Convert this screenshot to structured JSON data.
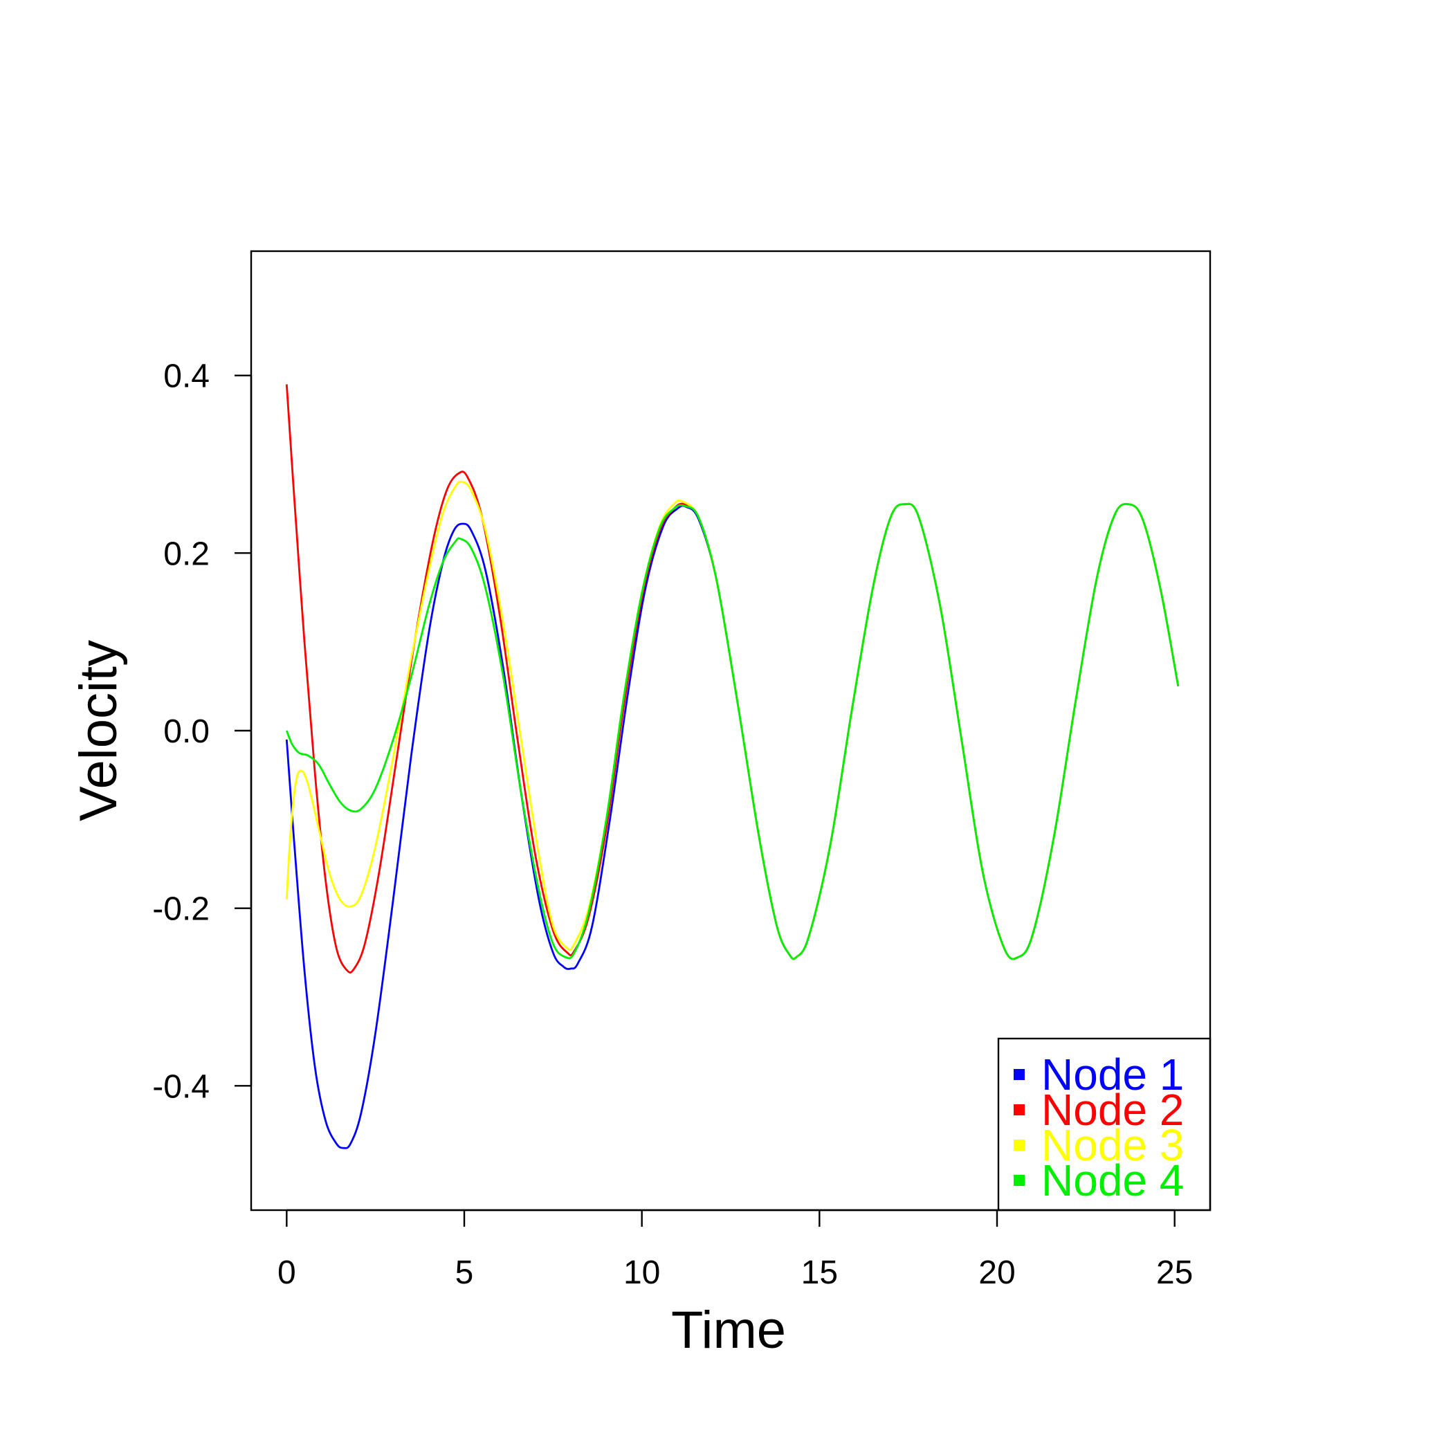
{
  "chart_data": {
    "type": "line",
    "xlabel": "Time",
    "ylabel": "Velocity",
    "xlim": [
      -1,
      26
    ],
    "ylim": [
      -0.54,
      0.54
    ],
    "x_ticks": [
      0,
      5,
      10,
      15,
      20,
      25
    ],
    "x_tick_labels": [
      "0",
      "5",
      "10",
      "15",
      "20",
      "25"
    ],
    "y_ticks": [
      -0.4,
      -0.2,
      0.0,
      0.2,
      0.4
    ],
    "y_tick_labels": [
      "-0.4",
      "-0.2",
      "0.0",
      "0.2",
      "0.4"
    ],
    "grid": false,
    "legend_position": "bottom-right",
    "series": [
      {
        "name": "Node 1",
        "color": "#0000ff",
        "points": [
          [
            0,
            -0.01
          ],
          [
            0.2,
            -0.12
          ],
          [
            0.5,
            -0.27
          ],
          [
            0.8,
            -0.38
          ],
          [
            1.1,
            -0.44
          ],
          [
            1.4,
            -0.465
          ],
          [
            1.6,
            -0.47
          ],
          [
            1.8,
            -0.465
          ],
          [
            2.1,
            -0.43
          ],
          [
            2.5,
            -0.34
          ],
          [
            3.0,
            -0.19
          ],
          [
            3.5,
            -0.03
          ],
          [
            4.0,
            0.11
          ],
          [
            4.4,
            0.19
          ],
          [
            4.7,
            0.225
          ],
          [
            4.95,
            0.233
          ],
          [
            5.2,
            0.225
          ],
          [
            5.6,
            0.18
          ],
          [
            6.1,
            0.07
          ],
          [
            6.6,
            -0.07
          ],
          [
            7.1,
            -0.19
          ],
          [
            7.5,
            -0.25
          ],
          [
            7.8,
            -0.266
          ],
          [
            8.0,
            -0.268
          ],
          [
            8.2,
            -0.262
          ],
          [
            8.6,
            -0.22
          ],
          [
            9.1,
            -0.1
          ],
          [
            9.6,
            0.04
          ],
          [
            10.1,
            0.16
          ],
          [
            10.6,
            0.23
          ],
          [
            11.0,
            0.25
          ],
          [
            11.25,
            0.252
          ],
          [
            11.6,
            0.238
          ],
          [
            12.1,
            0.17
          ],
          [
            12.7,
            0.03
          ],
          [
            13.3,
            -0.12
          ],
          [
            13.8,
            -0.22
          ],
          [
            14.15,
            -0.252
          ],
          [
            14.35,
            -0.255
          ],
          [
            14.7,
            -0.232
          ],
          [
            15.3,
            -0.13
          ],
          [
            15.9,
            0.02
          ],
          [
            16.5,
            0.16
          ],
          [
            17.0,
            0.24
          ],
          [
            17.4,
            0.255
          ],
          [
            17.8,
            0.24
          ],
          [
            18.4,
            0.14
          ],
          [
            19.0,
            -0.01
          ],
          [
            19.6,
            -0.16
          ],
          [
            20.2,
            -0.245
          ],
          [
            20.6,
            -0.255
          ],
          [
            21.0,
            -0.23
          ],
          [
            21.6,
            -0.12
          ],
          [
            22.2,
            0.03
          ],
          [
            22.8,
            0.17
          ],
          [
            23.3,
            0.242
          ],
          [
            23.7,
            0.255
          ],
          [
            24.1,
            0.238
          ],
          [
            24.6,
            0.16
          ],
          [
            25.1,
            0.05
          ]
        ]
      },
      {
        "name": "Node 2",
        "color": "#ff0000",
        "points": [
          [
            0,
            0.39
          ],
          [
            0.2,
            0.27
          ],
          [
            0.5,
            0.1
          ],
          [
            0.8,
            -0.05
          ],
          [
            1.1,
            -0.17
          ],
          [
            1.4,
            -0.245
          ],
          [
            1.7,
            -0.27
          ],
          [
            1.9,
            -0.268
          ],
          [
            2.2,
            -0.24
          ],
          [
            2.6,
            -0.16
          ],
          [
            3.1,
            -0.03
          ],
          [
            3.6,
            0.1
          ],
          [
            4.1,
            0.21
          ],
          [
            4.5,
            0.27
          ],
          [
            4.85,
            0.29
          ],
          [
            5.1,
            0.285
          ],
          [
            5.5,
            0.24
          ],
          [
            6.0,
            0.13
          ],
          [
            6.5,
            -0.01
          ],
          [
            7.0,
            -0.14
          ],
          [
            7.5,
            -0.225
          ],
          [
            7.9,
            -0.25
          ],
          [
            8.1,
            -0.248
          ],
          [
            8.5,
            -0.21
          ],
          [
            9.0,
            -0.11
          ],
          [
            9.5,
            0.03
          ],
          [
            10.0,
            0.15
          ],
          [
            10.5,
            0.225
          ],
          [
            10.9,
            0.25
          ],
          [
            11.2,
            0.255
          ],
          [
            11.6,
            0.24
          ],
          [
            12.1,
            0.17
          ],
          [
            12.7,
            0.03
          ],
          [
            13.3,
            -0.12
          ],
          [
            13.8,
            -0.22
          ],
          [
            14.15,
            -0.252
          ],
          [
            14.35,
            -0.255
          ],
          [
            14.7,
            -0.232
          ],
          [
            15.3,
            -0.13
          ],
          [
            15.9,
            0.02
          ],
          [
            16.5,
            0.16
          ],
          [
            17.0,
            0.24
          ],
          [
            17.4,
            0.255
          ],
          [
            17.8,
            0.24
          ],
          [
            18.4,
            0.14
          ],
          [
            19.0,
            -0.01
          ],
          [
            19.6,
            -0.16
          ],
          [
            20.2,
            -0.245
          ],
          [
            20.6,
            -0.255
          ],
          [
            21.0,
            -0.23
          ],
          [
            21.6,
            -0.12
          ],
          [
            22.2,
            0.03
          ],
          [
            22.8,
            0.17
          ],
          [
            23.3,
            0.242
          ],
          [
            23.7,
            0.255
          ],
          [
            24.1,
            0.238
          ],
          [
            24.6,
            0.16
          ],
          [
            25.1,
            0.05
          ]
        ]
      },
      {
        "name": "Node 3",
        "color": "#ffff00",
        "points": [
          [
            0,
            -0.19
          ],
          [
            0.1,
            -0.12
          ],
          [
            0.25,
            -0.06
          ],
          [
            0.4,
            -0.045
          ],
          [
            0.6,
            -0.06
          ],
          [
            0.9,
            -0.11
          ],
          [
            1.2,
            -0.16
          ],
          [
            1.5,
            -0.19
          ],
          [
            1.8,
            -0.198
          ],
          [
            2.1,
            -0.185
          ],
          [
            2.5,
            -0.13
          ],
          [
            3.0,
            -0.03
          ],
          [
            3.5,
            0.08
          ],
          [
            4.0,
            0.18
          ],
          [
            4.4,
            0.245
          ],
          [
            4.75,
            0.275
          ],
          [
            4.95,
            0.28
          ],
          [
            5.2,
            0.27
          ],
          [
            5.6,
            0.225
          ],
          [
            6.1,
            0.12
          ],
          [
            6.6,
            -0.01
          ],
          [
            7.1,
            -0.14
          ],
          [
            7.5,
            -0.22
          ],
          [
            7.9,
            -0.245
          ],
          [
            8.1,
            -0.24
          ],
          [
            8.5,
            -0.2
          ],
          [
            9.0,
            -0.1
          ],
          [
            9.5,
            0.04
          ],
          [
            10.0,
            0.155
          ],
          [
            10.5,
            0.23
          ],
          [
            10.9,
            0.255
          ],
          [
            11.15,
            0.258
          ],
          [
            11.6,
            0.24
          ],
          [
            12.1,
            0.17
          ],
          [
            12.7,
            0.03
          ],
          [
            13.3,
            -0.12
          ],
          [
            13.8,
            -0.22
          ],
          [
            14.15,
            -0.252
          ],
          [
            14.35,
            -0.255
          ],
          [
            14.7,
            -0.232
          ],
          [
            15.3,
            -0.13
          ],
          [
            15.9,
            0.02
          ],
          [
            16.5,
            0.16
          ],
          [
            17.0,
            0.24
          ],
          [
            17.4,
            0.255
          ],
          [
            17.8,
            0.24
          ],
          [
            18.4,
            0.14
          ],
          [
            19.0,
            -0.01
          ],
          [
            19.6,
            -0.16
          ],
          [
            20.2,
            -0.245
          ],
          [
            20.6,
            -0.255
          ],
          [
            21.0,
            -0.23
          ],
          [
            21.6,
            -0.12
          ],
          [
            22.2,
            0.03
          ],
          [
            22.8,
            0.17
          ],
          [
            23.3,
            0.242
          ],
          [
            23.7,
            0.255
          ],
          [
            24.1,
            0.238
          ],
          [
            24.6,
            0.16
          ],
          [
            25.1,
            0.05
          ]
        ]
      },
      {
        "name": "Node 4",
        "color": "#00ee00",
        "points": [
          [
            0,
            0.0
          ],
          [
            0.15,
            -0.015
          ],
          [
            0.35,
            -0.025
          ],
          [
            0.6,
            -0.028
          ],
          [
            0.9,
            -0.038
          ],
          [
            1.2,
            -0.06
          ],
          [
            1.5,
            -0.08
          ],
          [
            1.8,
            -0.09
          ],
          [
            2.1,
            -0.088
          ],
          [
            2.5,
            -0.065
          ],
          [
            3.0,
            -0.01
          ],
          [
            3.5,
            0.06
          ],
          [
            4.0,
            0.14
          ],
          [
            4.4,
            0.19
          ],
          [
            4.75,
            0.213
          ],
          [
            4.9,
            0.216
          ],
          [
            5.2,
            0.205
          ],
          [
            5.6,
            0.16
          ],
          [
            6.1,
            0.06
          ],
          [
            6.6,
            -0.07
          ],
          [
            7.1,
            -0.18
          ],
          [
            7.5,
            -0.24
          ],
          [
            7.85,
            -0.255
          ],
          [
            8.1,
            -0.25
          ],
          [
            8.5,
            -0.205
          ],
          [
            9.0,
            -0.1
          ],
          [
            9.5,
            0.04
          ],
          [
            10.0,
            0.155
          ],
          [
            10.5,
            0.228
          ],
          [
            10.9,
            0.25
          ],
          [
            11.2,
            0.253
          ],
          [
            11.6,
            0.24
          ],
          [
            12.1,
            0.17
          ],
          [
            12.7,
            0.03
          ],
          [
            13.3,
            -0.12
          ],
          [
            13.8,
            -0.22
          ],
          [
            14.15,
            -0.252
          ],
          [
            14.35,
            -0.255
          ],
          [
            14.7,
            -0.232
          ],
          [
            15.3,
            -0.13
          ],
          [
            15.9,
            0.02
          ],
          [
            16.5,
            0.16
          ],
          [
            17.0,
            0.24
          ],
          [
            17.4,
            0.255
          ],
          [
            17.8,
            0.24
          ],
          [
            18.4,
            0.14
          ],
          [
            19.0,
            -0.01
          ],
          [
            19.6,
            -0.16
          ],
          [
            20.2,
            -0.245
          ],
          [
            20.6,
            -0.255
          ],
          [
            21.0,
            -0.23
          ],
          [
            21.6,
            -0.12
          ],
          [
            22.2,
            0.03
          ],
          [
            22.8,
            0.17
          ],
          [
            23.3,
            0.242
          ],
          [
            23.7,
            0.255
          ],
          [
            24.1,
            0.238
          ],
          [
            24.6,
            0.16
          ],
          [
            25.1,
            0.05
          ]
        ]
      }
    ]
  }
}
